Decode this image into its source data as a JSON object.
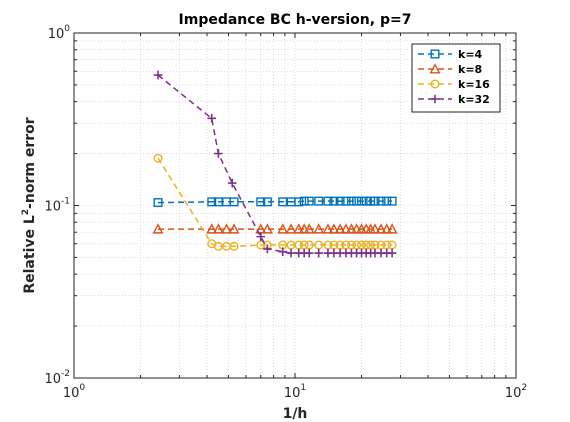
{
  "chart_data": {
    "type": "line",
    "title": "Impedance BC h-version, p=7",
    "xlabel_main": "1/h",
    "ylabel_prefix": "Relative L",
    "ylabel_sup": "2",
    "ylabel_suffix": "-norm error",
    "xscale": "log",
    "yscale": "log",
    "xlim": [
      1,
      100
    ],
    "ylim": [
      0.01,
      1
    ],
    "x_ticks": [
      {
        "value": 1,
        "base": "10",
        "exp": "0"
      },
      {
        "value": 10,
        "base": "10",
        "exp": "1"
      },
      {
        "value": 100,
        "base": "10",
        "exp": "2"
      }
    ],
    "y_ticks": [
      {
        "value": 0.01,
        "base": "10",
        "exp": "-2"
      },
      {
        "value": 0.1,
        "base": "10",
        "exp": "-1"
      },
      {
        "value": 1,
        "base": "10",
        "exp": "0"
      }
    ],
    "grid": true,
    "minor_grid": true,
    "legend_position": "top-right",
    "series": [
      {
        "name": "k=4",
        "color": "#0072BD",
        "marker": "square",
        "x": [
          2.4,
          4.2,
          4.5,
          4.9,
          5.3,
          7.0,
          7.5,
          8.8,
          9.6,
          10.4,
          11.0,
          11.6,
          12.8,
          14.1,
          15.0,
          16.0,
          17.0,
          18.0,
          19.0,
          20.0,
          21.0,
          22.0,
          23.0,
          24.5,
          26.0,
          27.5
        ],
        "y": [
          0.104,
          0.105,
          0.105,
          0.105,
          0.105,
          0.105,
          0.105,
          0.105,
          0.105,
          0.105,
          0.106,
          0.106,
          0.106,
          0.106,
          0.106,
          0.106,
          0.106,
          0.106,
          0.106,
          0.106,
          0.106,
          0.106,
          0.106,
          0.106,
          0.106,
          0.106
        ]
      },
      {
        "name": "k=8",
        "color": "#D95319",
        "marker": "triangle",
        "x": [
          2.4,
          4.2,
          4.5,
          4.9,
          5.3,
          7.0,
          7.5,
          8.8,
          9.6,
          10.4,
          11.0,
          11.6,
          12.8,
          14.1,
          15.0,
          16.0,
          17.0,
          18.0,
          19.0,
          20.0,
          21.0,
          22.0,
          23.0,
          24.5,
          26.0,
          27.5
        ],
        "y": [
          0.073,
          0.073,
          0.073,
          0.073,
          0.073,
          0.073,
          0.073,
          0.073,
          0.073,
          0.073,
          0.073,
          0.073,
          0.073,
          0.073,
          0.073,
          0.073,
          0.073,
          0.073,
          0.073,
          0.073,
          0.073,
          0.073,
          0.073,
          0.073,
          0.073,
          0.073
        ]
      },
      {
        "name": "k=16",
        "color": "#EDB120",
        "marker": "circle",
        "x": [
          2.4,
          4.2,
          4.5,
          4.9,
          5.3,
          7.0,
          7.5,
          8.8,
          9.6,
          10.4,
          11.0,
          11.6,
          12.8,
          14.1,
          15.0,
          16.0,
          17.0,
          18.0,
          19.0,
          20.0,
          21.0,
          22.0,
          23.0,
          24.5,
          26.0,
          27.5
        ],
        "y": [
          0.188,
          0.06,
          0.058,
          0.058,
          0.058,
          0.059,
          0.059,
          0.059,
          0.059,
          0.059,
          0.059,
          0.059,
          0.059,
          0.059,
          0.059,
          0.059,
          0.059,
          0.059,
          0.059,
          0.059,
          0.059,
          0.059,
          0.059,
          0.059,
          0.059,
          0.059
        ]
      },
      {
        "name": "k=32",
        "color": "#7E2F8E",
        "marker": "plus",
        "x": [
          2.4,
          4.2,
          4.5,
          5.2,
          7.0,
          7.5,
          8.8,
          9.6,
          10.4,
          11.0,
          11.6,
          12.8,
          14.1,
          15.0,
          16.0,
          17.0,
          18.0,
          19.0,
          20.0,
          21.0,
          22.0,
          23.0,
          24.5,
          26.0,
          27.5
        ],
        "y": [
          0.57,
          0.32,
          0.2,
          0.135,
          0.066,
          0.056,
          0.054,
          0.053,
          0.053,
          0.053,
          0.053,
          0.053,
          0.053,
          0.053,
          0.053,
          0.053,
          0.053,
          0.053,
          0.053,
          0.053,
          0.053,
          0.053,
          0.053,
          0.053,
          0.053
        ]
      }
    ]
  }
}
